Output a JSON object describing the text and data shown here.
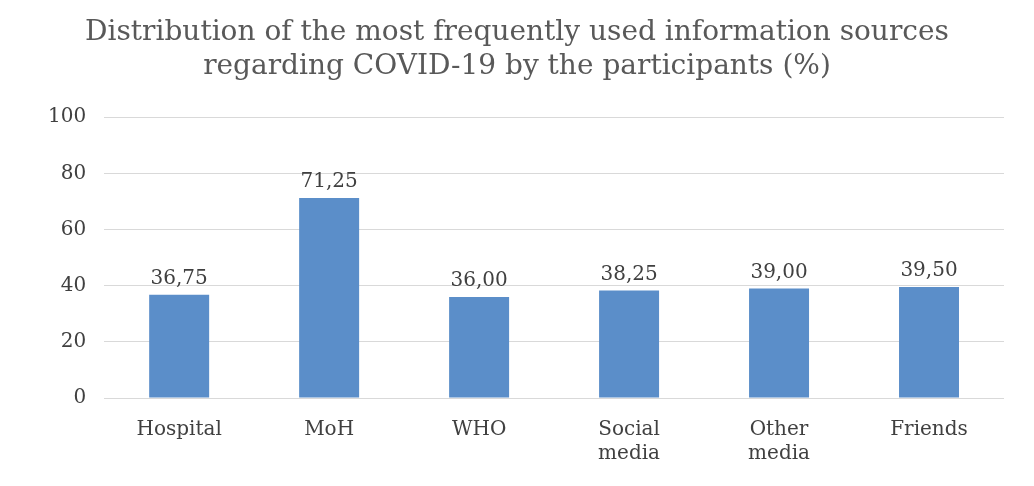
{
  "chart_data": {
    "type": "bar",
    "title": "Distribution of the most frequently used information sources regarding COVID-19 by the participants (%)",
    "categories": [
      "Hospital",
      "MoH",
      "WHO",
      "Social media",
      "Other media",
      "Friends"
    ],
    "values": [
      36.75,
      71.25,
      36.0,
      38.25,
      39.0,
      39.5
    ],
    "value_labels": [
      "36,75",
      "71,25",
      "36,00",
      "38,25",
      "39,00",
      "39,50"
    ],
    "color": "#5b8ec9",
    "ylim": [
      0,
      100
    ],
    "yticks": [
      0,
      20,
      40,
      60,
      80,
      100
    ],
    "grid": "y",
    "legend": false
  }
}
